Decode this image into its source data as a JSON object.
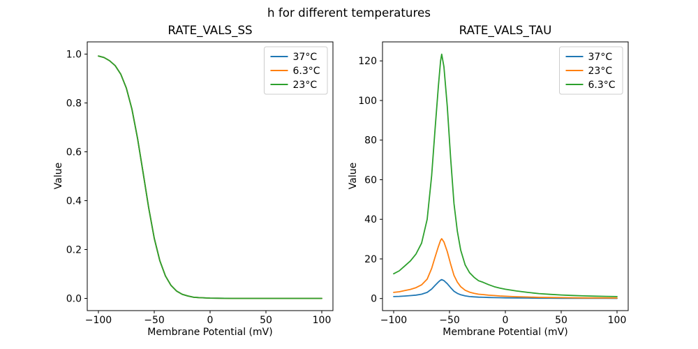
{
  "figure": {
    "title": "h for different temperatures",
    "background": "#ffffff",
    "text_color": "#000000"
  },
  "palette": {
    "blue": "#1f77b4",
    "orange": "#ff7f0e",
    "green": "#2ca02c",
    "legend_border": "#cccccc",
    "axis_color": "#000000"
  },
  "chart_data": [
    {
      "type": "line",
      "title": "RATE_VALS_SS",
      "xlabel": "Membrane Potential (mV)",
      "ylabel": "Value",
      "xlim": [
        -110,
        110
      ],
      "ylim": [
        -0.05,
        1.05
      ],
      "grid": false,
      "legend_position": "upper right",
      "xticks": [
        -100,
        -50,
        0,
        50,
        100
      ],
      "xtick_labels": [
        "−100",
        "−50",
        "0",
        "50",
        "100"
      ],
      "yticks": [
        0.0,
        0.2,
        0.4,
        0.6,
        0.8,
        1.0
      ],
      "ytick_labels": [
        "0.0",
        "0.2",
        "0.4",
        "0.6",
        "0.8",
        "1.0"
      ],
      "x": [
        -100,
        -95,
        -90,
        -85,
        -80,
        -75,
        -70,
        -65,
        -60,
        -55,
        -50,
        -45,
        -40,
        -35,
        -30,
        -25,
        -20,
        -15,
        -10,
        0,
        20,
        40,
        60,
        80,
        100
      ],
      "series": [
        {
          "name": "37°C",
          "color": "#1f77b4",
          "values": [
            0.992,
            0.986,
            0.973,
            0.953,
            0.918,
            0.861,
            0.775,
            0.656,
            0.515,
            0.371,
            0.246,
            0.154,
            0.092,
            0.053,
            0.03,
            0.017,
            0.01,
            0.005,
            0.003,
            0.001,
            0.0,
            0.0,
            0.0,
            0.0,
            0.0
          ]
        },
        {
          "name": "6.3°C",
          "color": "#ff7f0e",
          "values": [
            0.992,
            0.986,
            0.973,
            0.953,
            0.918,
            0.861,
            0.775,
            0.656,
            0.515,
            0.371,
            0.246,
            0.154,
            0.092,
            0.053,
            0.03,
            0.017,
            0.01,
            0.005,
            0.003,
            0.001,
            0.0,
            0.0,
            0.0,
            0.0,
            0.0
          ]
        },
        {
          "name": "23°C",
          "color": "#2ca02c",
          "values": [
            0.992,
            0.986,
            0.973,
            0.953,
            0.918,
            0.861,
            0.775,
            0.656,
            0.515,
            0.371,
            0.246,
            0.154,
            0.092,
            0.053,
            0.03,
            0.017,
            0.01,
            0.005,
            0.003,
            0.001,
            0.0,
            0.0,
            0.0,
            0.0,
            0.0
          ]
        }
      ]
    },
    {
      "type": "line",
      "title": "RATE_VALS_TAU",
      "xlabel": "Membrane Potential (mV)",
      "ylabel": "Value",
      "xlim": [
        -110,
        110
      ],
      "ylim": [
        -6.1,
        129.6
      ],
      "grid": false,
      "legend_position": "upper right",
      "xticks": [
        -100,
        -50,
        0,
        50,
        100
      ],
      "xtick_labels": [
        "−100",
        "−50",
        "0",
        "50",
        "100"
      ],
      "yticks": [
        0,
        20,
        40,
        60,
        80,
        100,
        120
      ],
      "ytick_labels": [
        "0",
        "20",
        "40",
        "60",
        "80",
        "100",
        "120"
      ],
      "x": [
        -100,
        -95,
        -90,
        -85,
        -80,
        -75,
        -70,
        -66,
        -63,
        -60,
        -58,
        -57,
        -55,
        -52,
        -49,
        -46,
        -43,
        -40,
        -36,
        -32,
        -28,
        -24,
        -20,
        -15,
        -10,
        -5,
        0,
        10,
        20,
        30,
        40,
        50,
        60,
        70,
        80,
        90,
        100
      ],
      "series": [
        {
          "name": "37°C",
          "color": "#1f77b4",
          "values": [
            0.97,
            1.09,
            1.28,
            1.47,
            1.74,
            2.17,
            3.1,
            4.8,
            6.6,
            8.3,
            9.3,
            9.56,
            9.07,
            7.5,
            5.5,
            3.7,
            2.6,
            1.9,
            1.32,
            1.0,
            0.83,
            0.7,
            0.64,
            0.54,
            0.47,
            0.41,
            0.36,
            0.29,
            0.24,
            0.19,
            0.16,
            0.14,
            0.12,
            0.1,
            0.09,
            0.09,
            0.08
          ]
        },
        {
          "name": "23°C",
          "color": "#ff7f0e",
          "values": [
            3.1,
            3.4,
            4.0,
            4.6,
            5.5,
            6.9,
            9.8,
            15.2,
            20.8,
            26.2,
            29.4,
            30.2,
            28.6,
            23.7,
            17.4,
            11.7,
            8.3,
            6.0,
            4.2,
            3.2,
            2.6,
            2.2,
            2.0,
            1.7,
            1.5,
            1.3,
            1.15,
            0.93,
            0.76,
            0.61,
            0.51,
            0.44,
            0.38,
            0.33,
            0.29,
            0.27,
            0.24
          ]
        },
        {
          "name": "6.3°C",
          "color": "#2ca02c",
          "values": [
            12.5,
            14.0,
            16.5,
            19.0,
            22.5,
            28.0,
            40.0,
            62.0,
            85.0,
            107.0,
            120.0,
            123.4,
            117.0,
            97.0,
            71.0,
            48.0,
            34.0,
            24.5,
            17.0,
            13.0,
            10.7,
            9.0,
            8.2,
            7.0,
            6.0,
            5.3,
            4.7,
            3.8,
            3.1,
            2.5,
            2.1,
            1.8,
            1.55,
            1.35,
            1.2,
            1.1,
            1.0
          ]
        }
      ]
    }
  ]
}
